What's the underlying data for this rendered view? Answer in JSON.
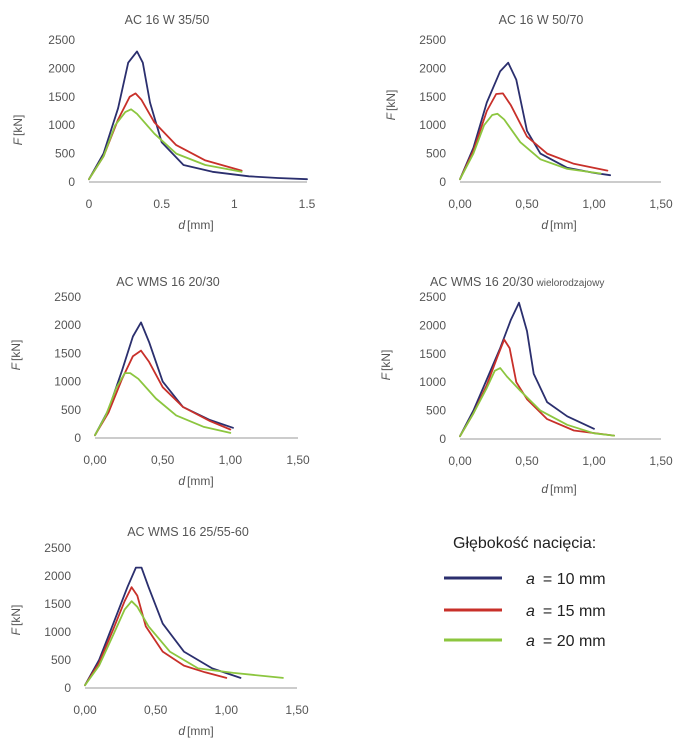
{
  "legend": {
    "title": "Głębokość nacięcia:",
    "items": [
      {
        "var": "a",
        "text": "= 10 mm",
        "color": "#2b2f6e"
      },
      {
        "var": "a",
        "text": "= 15 mm",
        "color": "#c8302a"
      },
      {
        "var": "a",
        "text": "= 20 mm",
        "color": "#8cc63f"
      }
    ]
  },
  "chart_data": [
    {
      "type": "line",
      "title": "AC 16 W 35/50",
      "xlabel_var": "d",
      "xlabel_unit": "[mm]",
      "ylabel_var": "F",
      "ylabel_unit": "[kN]",
      "xlim": [
        0,
        1.5
      ],
      "ylim": [
        0,
        2500
      ],
      "xticks": [
        0,
        0.5,
        1,
        1.5
      ],
      "xtick_labels": [
        "0",
        "0.5",
        "1",
        "1.5"
      ],
      "yticks": [
        0,
        500,
        1000,
        1500,
        2000,
        2500
      ],
      "ytick_labels": [
        "0",
        "500",
        "1000",
        "1500",
        "2000",
        "2500"
      ],
      "series": [
        {
          "color": "#2b2f6e",
          "x": [
            0,
            0.1,
            0.2,
            0.27,
            0.33,
            0.37,
            0.42,
            0.5,
            0.65,
            0.85,
            1.1,
            1.3,
            1.5
          ],
          "y": [
            50,
            500,
            1300,
            2100,
            2300,
            2100,
            1400,
            700,
            300,
            180,
            100,
            70,
            50
          ]
        },
        {
          "color": "#c8302a",
          "x": [
            0,
            0.1,
            0.2,
            0.28,
            0.32,
            0.36,
            0.45,
            0.6,
            0.8,
            1.05
          ],
          "y": [
            50,
            450,
            1100,
            1500,
            1560,
            1450,
            1050,
            650,
            380,
            200
          ]
        },
        {
          "color": "#8cc63f",
          "x": [
            0,
            0.1,
            0.18,
            0.25,
            0.29,
            0.33,
            0.45,
            0.6,
            0.8,
            1.05
          ],
          "y": [
            50,
            450,
            1000,
            1230,
            1280,
            1200,
            850,
            500,
            300,
            180
          ]
        }
      ]
    },
    {
      "type": "line",
      "title": "AC 16 W 50/70",
      "xlabel_var": "d",
      "xlabel_unit": "[mm]",
      "ylabel_var": "F",
      "ylabel_unit": "[kN]",
      "xlim": [
        0,
        1.5
      ],
      "ylim": [
        0,
        2500
      ],
      "xticks": [
        0,
        0.5,
        1,
        1.5
      ],
      "xtick_labels": [
        "0,00",
        "0,50",
        "1,00",
        "1,50"
      ],
      "yticks": [
        0,
        500,
        1000,
        1500,
        2000,
        2500
      ],
      "ytick_labels": [
        "0",
        "500",
        "1000",
        "1500",
        "2000",
        "2500"
      ],
      "series": [
        {
          "color": "#2b2f6e",
          "x": [
            0,
            0.1,
            0.2,
            0.3,
            0.36,
            0.42,
            0.5,
            0.6,
            0.8,
            1.0,
            1.12
          ],
          "y": [
            50,
            600,
            1400,
            1950,
            2100,
            1800,
            900,
            500,
            250,
            160,
            120
          ]
        },
        {
          "color": "#c8302a",
          "x": [
            0,
            0.1,
            0.2,
            0.27,
            0.32,
            0.38,
            0.5,
            0.65,
            0.85,
            1.1
          ],
          "y": [
            50,
            550,
            1250,
            1550,
            1560,
            1350,
            800,
            500,
            320,
            200
          ]
        },
        {
          "color": "#8cc63f",
          "x": [
            0,
            0.1,
            0.18,
            0.24,
            0.28,
            0.33,
            0.45,
            0.6,
            0.8,
            1.05
          ],
          "y": [
            50,
            500,
            1000,
            1180,
            1200,
            1100,
            700,
            400,
            230,
            150
          ]
        }
      ]
    },
    {
      "type": "line",
      "title": "AC WMS 16 20/30",
      "xlabel_var": "d",
      "xlabel_unit": "[mm]",
      "ylabel_var": "F",
      "ylabel_unit": "[kN]",
      "xlim": [
        0,
        1.5
      ],
      "ylim": [
        0,
        2500
      ],
      "xticks": [
        0,
        0.5,
        1,
        1.5
      ],
      "xtick_labels": [
        "0,00",
        "0,50",
        "1,00",
        "1,50"
      ],
      "yticks": [
        0,
        500,
        1000,
        1500,
        2000,
        2500
      ],
      "ytick_labels": [
        "0",
        "500",
        "1000",
        "1500",
        "2000",
        "2500"
      ],
      "series": [
        {
          "color": "#2b2f6e",
          "x": [
            0,
            0.1,
            0.2,
            0.28,
            0.34,
            0.4,
            0.5,
            0.65,
            0.85,
            1.02
          ],
          "y": [
            50,
            500,
            1200,
            1800,
            2050,
            1700,
            1000,
            550,
            320,
            180
          ]
        },
        {
          "color": "#c8302a",
          "x": [
            0,
            0.1,
            0.2,
            0.28,
            0.34,
            0.4,
            0.5,
            0.65,
            0.85,
            1.0
          ],
          "y": [
            50,
            450,
            1050,
            1450,
            1550,
            1350,
            900,
            550,
            300,
            150
          ]
        },
        {
          "color": "#8cc63f",
          "x": [
            0,
            0.08,
            0.16,
            0.22,
            0.26,
            0.32,
            0.45,
            0.6,
            0.8,
            1.0
          ],
          "y": [
            50,
            400,
            900,
            1150,
            1150,
            1050,
            700,
            400,
            200,
            90
          ]
        }
      ]
    },
    {
      "type": "line",
      "title": "AC WMS 16 20/30",
      "title_suffix": "wielorodzajowy",
      "xlabel_var": "d",
      "xlabel_unit": "[mm]",
      "ylabel_var": "F",
      "ylabel_unit": "[kN]",
      "xlim": [
        0,
        1.5
      ],
      "ylim": [
        0,
        2500
      ],
      "xticks": [
        0,
        0.5,
        1,
        1.5
      ],
      "xtick_labels": [
        "0,00",
        "0,50",
        "1,00",
        "1,50"
      ],
      "yticks": [
        0,
        500,
        1000,
        1500,
        2000,
        2500
      ],
      "ytick_labels": [
        "0",
        "500",
        "1000",
        "1500",
        "2000",
        "2500"
      ],
      "series": [
        {
          "color": "#2b2f6e",
          "x": [
            0,
            0.1,
            0.2,
            0.3,
            0.38,
            0.44,
            0.5,
            0.55,
            0.65,
            0.8,
            1.0
          ],
          "y": [
            50,
            500,
            1050,
            1600,
            2100,
            2400,
            1900,
            1150,
            650,
            400,
            180
          ]
        },
        {
          "color": "#c8302a",
          "x": [
            0,
            0.1,
            0.2,
            0.28,
            0.33,
            0.37,
            0.42,
            0.5,
            0.65,
            0.85,
            1.15
          ],
          "y": [
            50,
            450,
            950,
            1450,
            1750,
            1600,
            1000,
            700,
            350,
            150,
            60
          ]
        },
        {
          "color": "#8cc63f",
          "x": [
            0,
            0.1,
            0.2,
            0.26,
            0.3,
            0.35,
            0.45,
            0.6,
            0.8,
            1.0,
            1.15
          ],
          "y": [
            50,
            450,
            900,
            1200,
            1250,
            1100,
            850,
            500,
            250,
            100,
            60
          ]
        }
      ]
    },
    {
      "type": "line",
      "title": "AC WMS 16 25/55-60",
      "xlabel_var": "d",
      "xlabel_unit": "[mm]",
      "ylabel_var": "F",
      "ylabel_unit": "[kN]",
      "xlim": [
        0,
        1.5
      ],
      "ylim": [
        0,
        2500
      ],
      "xticks": [
        0,
        0.5,
        1,
        1.5
      ],
      "xtick_labels": [
        "0,00",
        "0,50",
        "1,00",
        "1,50"
      ],
      "yticks": [
        0,
        500,
        1000,
        1500,
        2000,
        2500
      ],
      "ytick_labels": [
        "0",
        "500",
        "1000",
        "1500",
        "2000",
        "2500"
      ],
      "series": [
        {
          "color": "#2b2f6e",
          "x": [
            0,
            0.1,
            0.2,
            0.3,
            0.36,
            0.4,
            0.45,
            0.55,
            0.7,
            0.9,
            1.1
          ],
          "y": [
            50,
            500,
            1150,
            1800,
            2150,
            2150,
            1800,
            1150,
            650,
            350,
            180
          ]
        },
        {
          "color": "#c8302a",
          "x": [
            0,
            0.1,
            0.2,
            0.28,
            0.33,
            0.37,
            0.43,
            0.55,
            0.7,
            0.85,
            1.0
          ],
          "y": [
            50,
            450,
            1050,
            1550,
            1800,
            1650,
            1100,
            650,
            400,
            280,
            180
          ]
        },
        {
          "color": "#8cc63f",
          "x": [
            0,
            0.1,
            0.2,
            0.28,
            0.33,
            0.37,
            0.45,
            0.6,
            0.8,
            1.05,
            1.4
          ],
          "y": [
            50,
            400,
            950,
            1400,
            1550,
            1450,
            1100,
            650,
            350,
            270,
            180
          ]
        }
      ]
    }
  ]
}
